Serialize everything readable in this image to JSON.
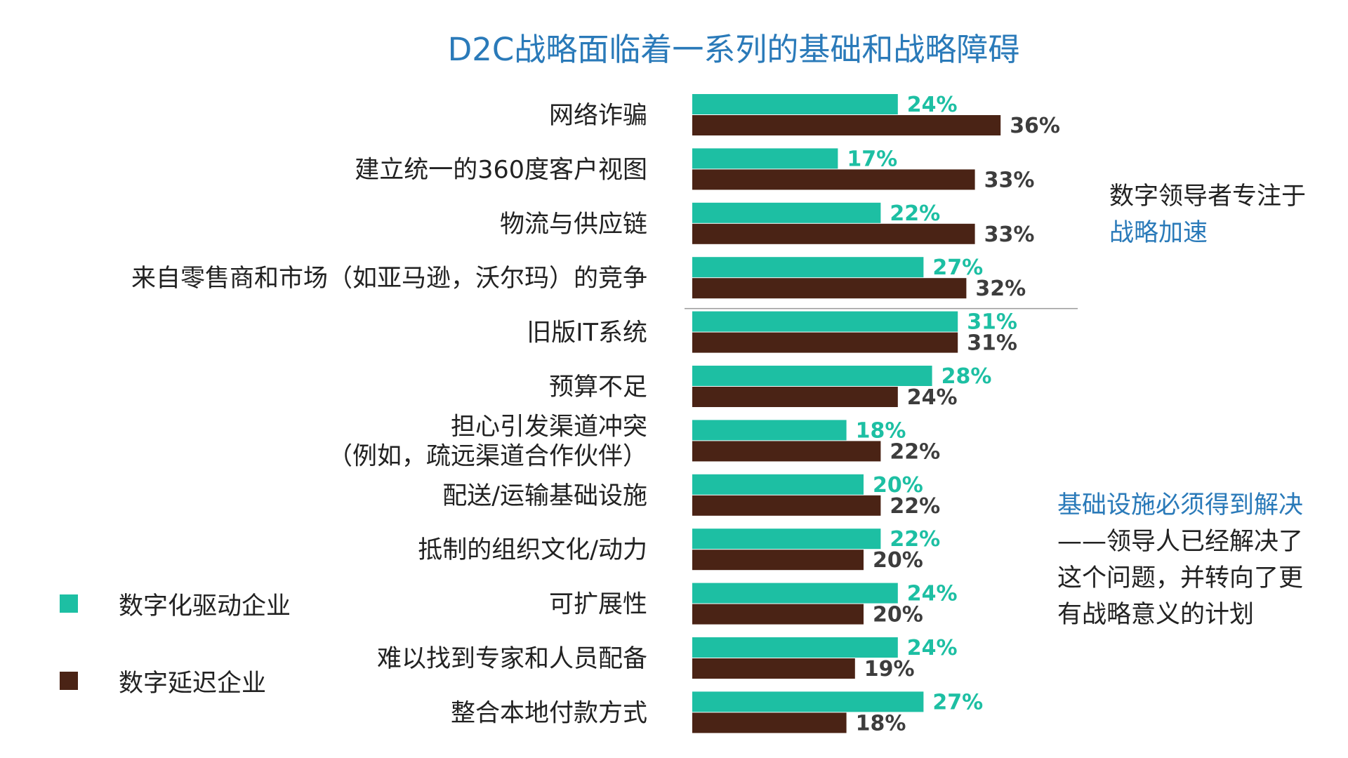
{
  "chart_data": {
    "type": "bar",
    "orientation": "horizontal",
    "title": "D2C战略面临着一系列的基础和战略障碍",
    "categories": [
      [
        "网络诈骗"
      ],
      [
        "建立统一的360度客户视图"
      ],
      [
        "物流与供应链"
      ],
      [
        "来自零售商和市场（如亚马逊，沃尔玛）的竞争"
      ],
      [
        "旧版IT系统"
      ],
      [
        "预算不足"
      ],
      [
        "担心引发渠道冲突",
        "（例如，疏远渠道合作伙伴）"
      ],
      [
        "配送/运输基础设施"
      ],
      [
        "抵制的组织文化/动力"
      ],
      [
        "可扩展性"
      ],
      [
        "难以找到专家和人员配备"
      ],
      [
        "整合本地付款方式"
      ]
    ],
    "series": [
      {
        "name": "数字化驱动企业",
        "color": "#1dbfa3",
        "label_color": "#1dbfa3",
        "values": [
          24,
          17,
          22,
          27,
          31,
          28,
          18,
          20,
          22,
          24,
          24,
          27
        ],
        "labels": [
          "24%",
          "17%",
          "22%",
          "27%",
          "31%",
          "28%",
          "18%",
          "20%",
          "22%",
          "24%",
          "24%",
          "27%"
        ]
      },
      {
        "name": "数字延迟企业",
        "color": "#4a2315",
        "label_color": "#3d3d3d",
        "values": [
          36,
          33,
          33,
          32,
          31,
          24,
          22,
          22,
          20,
          20,
          19,
          18
        ],
        "labels": [
          "36%",
          "33%",
          "33%",
          "32%",
          "31%",
          "24%",
          "22%",
          "22%",
          "20%",
          "20%",
          "19%",
          "18%"
        ]
      }
    ],
    "divider_after_category": 3,
    "legend": {
      "placement": "bottom-left"
    }
  },
  "notes": {
    "strategic": {
      "line1": "数字领导者专注于",
      "highlight": "战略加速"
    },
    "infrastructure": {
      "highlight": "基础设施必须得到解决",
      "lines": [
        "——领导人已经解决了",
        "这个问题，并转向了更",
        "有战略意义的计划"
      ]
    }
  },
  "colors": {
    "title": "#2a7ab9",
    "accent": "#2a7ab9",
    "divider": "#999999"
  }
}
